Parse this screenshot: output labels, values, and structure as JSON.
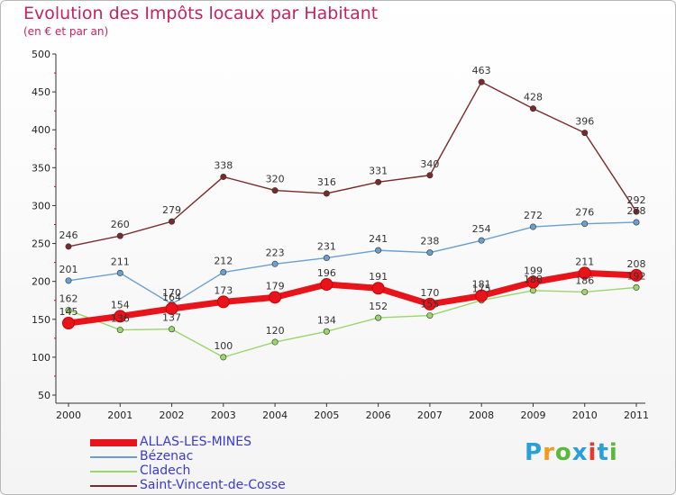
{
  "header": {
    "title": "Evolution des Impôts locaux par Habitant",
    "subtitle": "(en € et par an)"
  },
  "logo": {
    "text": "Proxiti",
    "colors": [
      "#2b9fd8",
      "#f29a1f",
      "#5cb83a",
      "#2b9fd8",
      "#e8372f",
      "#2b9fd8",
      "#5cb83a"
    ]
  },
  "chart_data": {
    "type": "line",
    "title": "Evolution des Impôts locaux par Habitant",
    "subtitle": "(en € et par an)",
    "x": [
      "2000",
      "2001",
      "2002",
      "2003",
      "2004",
      "2005",
      "2006",
      "2007",
      "2008",
      "2009",
      "2010",
      "2011"
    ],
    "ylim": [
      50,
      500
    ],
    "yticks": [
      "50",
      "100",
      "150",
      "200",
      "250",
      "300",
      "350",
      "400",
      "450",
      "500"
    ],
    "grid": false,
    "legend_position": "bottom-left",
    "series": [
      {
        "name": "ALLAS-LES-MINES",
        "color": "#e8141b",
        "values": [
          145,
          154,
          164,
          173,
          179,
          196,
          191,
          170,
          181,
          199,
          211,
          208
        ],
        "labels": [
          "145",
          "154",
          "164",
          "173",
          "179",
          "196",
          "191",
          "170",
          "181",
          "199",
          "211",
          "208"
        ]
      },
      {
        "name": "Bézenac",
        "color": "#6a9fcf",
        "values": [
          201,
          211,
          170,
          212,
          223,
          231,
          241,
          238,
          254,
          272,
          276,
          278
        ],
        "labels": [
          "201",
          "211",
          "170",
          "212",
          "223",
          "231",
          "241",
          "238",
          "254",
          "272",
          "276",
          "278"
        ]
      },
      {
        "name": "Cladech",
        "color": "#9ad66a",
        "values": [
          162,
          136,
          137,
          100,
          120,
          134,
          152,
          155,
          175,
          188,
          186,
          192
        ],
        "labels": [
          "162",
          "136",
          "137",
          "100",
          "120",
          "134",
          "152",
          "155",
          "175",
          "188",
          "186",
          "192"
        ]
      },
      {
        "name": "Saint-Vincent-de-Cosse",
        "color": "#7a2a2a",
        "values": [
          246,
          260,
          279,
          338,
          320,
          316,
          331,
          340,
          463,
          428,
          396,
          292
        ],
        "labels": [
          "246",
          "260",
          "279",
          "338",
          "320",
          "316",
          "331",
          "340",
          "463",
          "428",
          "396",
          "292"
        ]
      }
    ]
  }
}
